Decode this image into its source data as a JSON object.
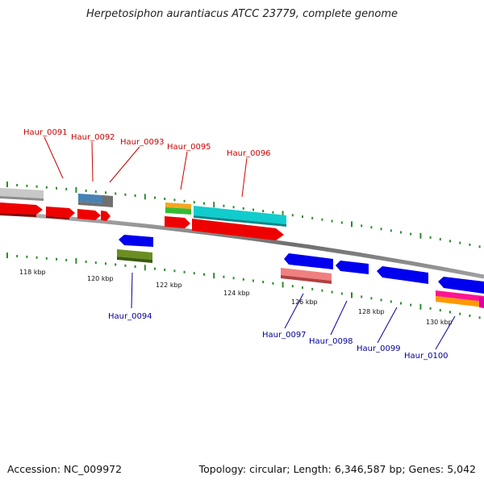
{
  "title": "Herpetosiphon aurantiacus ATCC 23779, complete genome",
  "footer": {
    "accession": "Accession: NC_009972",
    "summary": "Topology: circular; Length: 6,346,587 bp; Genes: 5,042"
  },
  "colors": {
    "forward_label": "#cc0000",
    "reverse_label": "#000099",
    "tick": "#2e8b2e",
    "backbone": "#808080"
  },
  "scale_labels": [
    "118 kbp",
    "120 kbp",
    "122 kbp",
    "124 kbp",
    "126 kbp",
    "128 kbp",
    "130 kbp"
  ],
  "gene_labels_forward": [
    "Haur_0091",
    "Haur_0092",
    "Haur_0093",
    "Haur_0095",
    "Haur_0096"
  ],
  "gene_labels_reverse": [
    "Haur_0094",
    "Haur_0097",
    "Haur_0098",
    "Haur_0099",
    "Haur_0100"
  ]
}
